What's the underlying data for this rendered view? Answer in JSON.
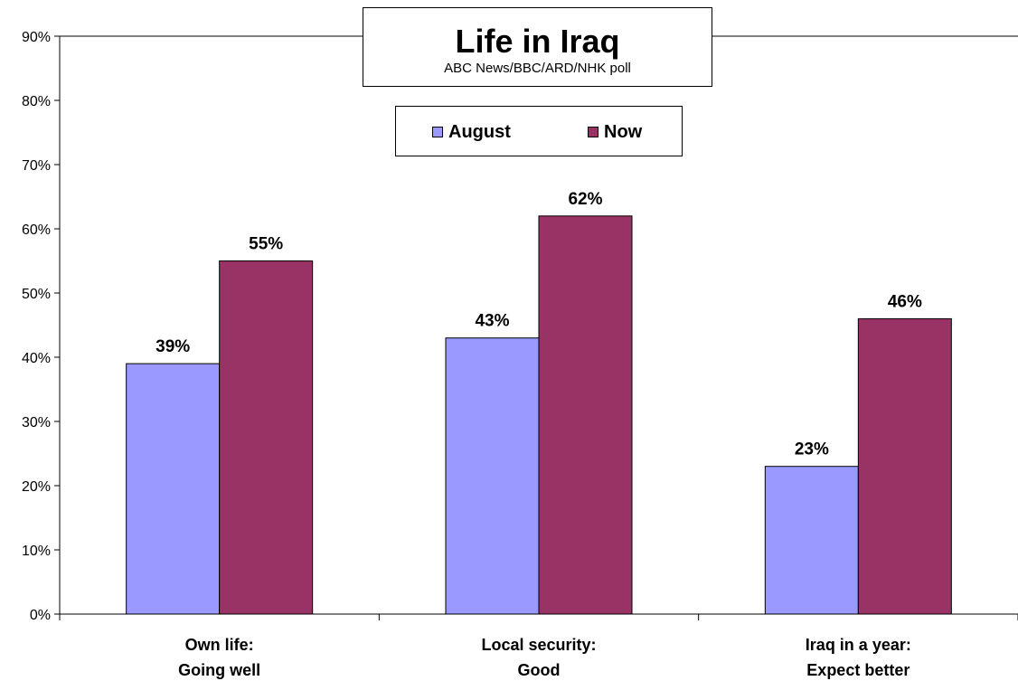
{
  "chart_data": {
    "type": "bar",
    "title": "Life in Iraq",
    "subtitle": "ABC News/BBC/ARD/NHK poll",
    "categories": [
      [
        "Own life:",
        "Going well"
      ],
      [
        "Local security:",
        "Good"
      ],
      [
        "Iraq in a year:",
        "Expect better"
      ]
    ],
    "series": [
      {
        "name": "August",
        "values": [
          39,
          43,
          23
        ],
        "labels": [
          "39%",
          "43%",
          "23%"
        ],
        "color": "#9999ff"
      },
      {
        "name": "Now",
        "values": [
          55,
          62,
          46
        ],
        "labels": [
          "55%",
          "62%",
          "46%"
        ],
        "color": "#993366"
      }
    ],
    "ylim": [
      0,
      90
    ],
    "yticks": [
      "0%",
      "10%",
      "20%",
      "30%",
      "40%",
      "50%",
      "60%",
      "70%",
      "80%",
      "90%"
    ],
    "grid": "top line only",
    "legend_position": "top-center"
  }
}
